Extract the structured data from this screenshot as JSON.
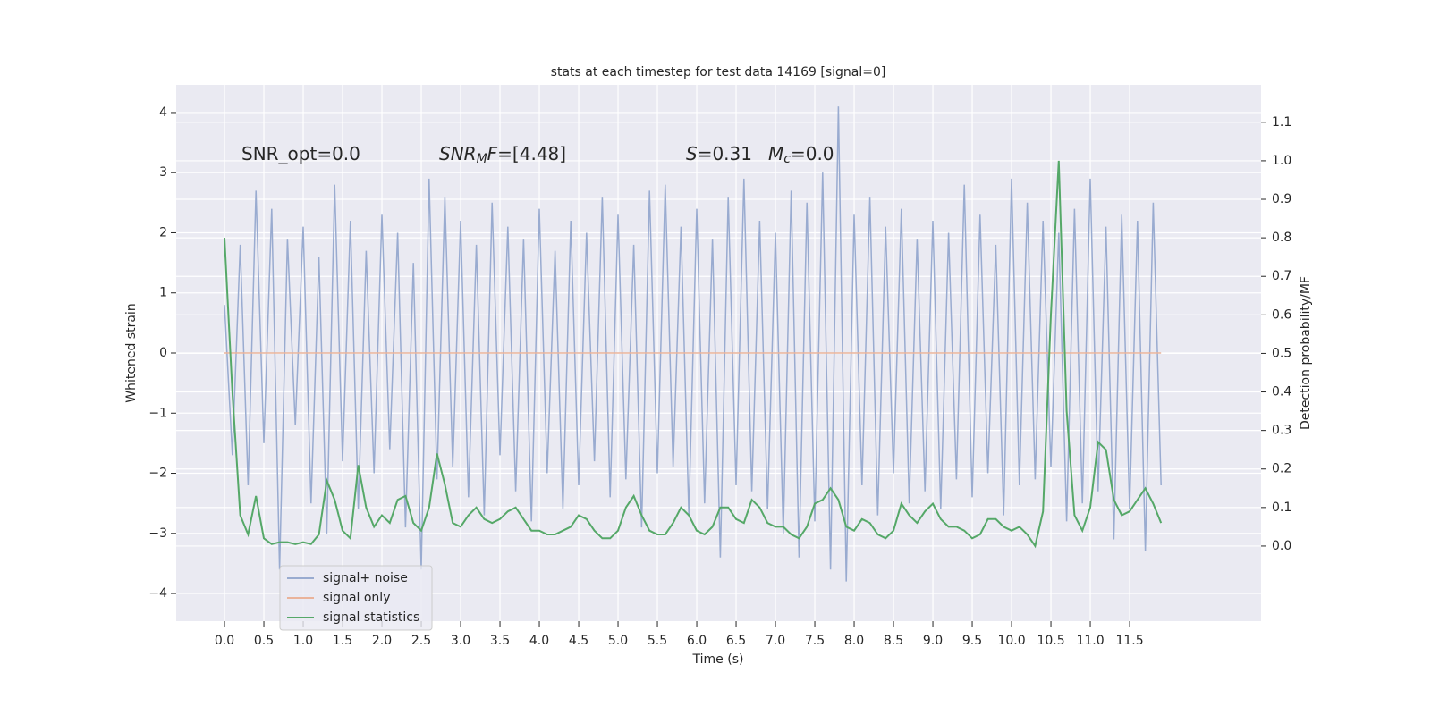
{
  "chart_data": {
    "type": "line",
    "title": "stats at each timestep for test data 14169 [signal=0]",
    "xlabel": "Time (s)",
    "ylabel": "Whitened strain",
    "y2label": "Detection probability/MF",
    "annotations": [
      {
        "parts": [
          "SNR_opt=0.0"
        ]
      },
      {
        "parts": [
          "SNR",
          "M",
          "F",
          "=[4.48]"
        ]
      },
      {
        "parts": [
          "S",
          "=0.31"
        ]
      },
      {
        "parts": [
          "M",
          "c",
          "=0.0"
        ]
      }
    ],
    "x": [
      0.0,
      0.1,
      0.2,
      0.3,
      0.4,
      0.5,
      0.6,
      0.7,
      0.8,
      0.9,
      1.0,
      1.1,
      1.2,
      1.3,
      1.4,
      1.5,
      1.6,
      1.7,
      1.8,
      1.9,
      2.0,
      2.1,
      2.2,
      2.3,
      2.4,
      2.5,
      2.6,
      2.7,
      2.8,
      2.9,
      3.0,
      3.1,
      3.2,
      3.3,
      3.4,
      3.5,
      3.6,
      3.7,
      3.8,
      3.9,
      4.0,
      4.1,
      4.2,
      4.3,
      4.4,
      4.5,
      4.6,
      4.7,
      4.8,
      4.9,
      5.0,
      5.1,
      5.2,
      5.3,
      5.4,
      5.5,
      5.6,
      5.7,
      5.8,
      5.9,
      6.0,
      6.1,
      6.2,
      6.3,
      6.4,
      6.5,
      6.6,
      6.7,
      6.8,
      6.9,
      7.0,
      7.1,
      7.2,
      7.3,
      7.4,
      7.5,
      7.6,
      7.7,
      7.8,
      7.9,
      8.0,
      8.1,
      8.2,
      8.3,
      8.4,
      8.5,
      8.6,
      8.7,
      8.8,
      8.9,
      9.0,
      9.1,
      9.2,
      9.3,
      9.4,
      9.5,
      9.6,
      9.7,
      9.8,
      9.9,
      10.0,
      10.1,
      10.2,
      10.3,
      10.4,
      10.5,
      10.6,
      10.7,
      10.8,
      10.9,
      11.0,
      11.1,
      11.2,
      11.3,
      11.4,
      11.5,
      11.6,
      11.7,
      11.8,
      11.9
    ],
    "series": [
      {
        "name": "signal+ noise",
        "color": "#99abd0",
        "values": [
          0.8,
          -1.7,
          1.8,
          -2.2,
          2.7,
          -1.5,
          2.4,
          -3.6,
          1.9,
          -1.2,
          2.1,
          -2.5,
          1.6,
          -3.0,
          2.8,
          -1.8,
          2.2,
          -2.6,
          1.7,
          -2.0,
          2.3,
          -1.6,
          2.0,
          -2.9,
          1.5,
          -3.6,
          2.9,
          -2.1,
          2.6,
          -1.9,
          2.2,
          -2.4,
          1.8,
          -2.7,
          2.5,
          -1.7,
          2.1,
          -2.3,
          1.9,
          -2.8,
          2.4,
          -2.0,
          1.7,
          -2.6,
          2.2,
          -2.2,
          2.0,
          -1.8,
          2.6,
          -2.4,
          2.3,
          -2.1,
          1.8,
          -2.9,
          2.7,
          -2.0,
          2.8,
          -1.9,
          2.1,
          -2.7,
          2.4,
          -2.5,
          1.9,
          -3.4,
          2.6,
          -2.2,
          2.9,
          -2.3,
          2.2,
          -2.6,
          2.0,
          -3.0,
          2.7,
          -3.4,
          2.5,
          -2.8,
          3.0,
          -3.6,
          4.1,
          -3.8,
          2.3,
          -2.2,
          2.6,
          -2.7,
          2.1,
          -2.0,
          2.4,
          -2.5,
          1.9,
          -2.3,
          2.2,
          -2.6,
          2.0,
          -2.1,
          2.8,
          -2.4,
          2.3,
          -2.0,
          1.8,
          -2.7,
          2.9,
          -2.2,
          2.5,
          -2.1,
          2.2,
          -1.9,
          2.0,
          -2.8,
          2.4,
          -2.5,
          2.9,
          -2.3,
          2.1,
          -3.1,
          2.3,
          -2.6,
          2.2,
          -3.3,
          2.5,
          -2.2
        ]
      },
      {
        "name": "signal only",
        "color": "#eab39a",
        "x": [
          0.0,
          11.9
        ],
        "values": [
          0,
          0
        ]
      },
      {
        "name": "signal statistics",
        "color": "#55a868",
        "axis": "y2",
        "values": [
          0.8,
          0.4,
          0.08,
          0.03,
          0.13,
          0.02,
          0.005,
          0.01,
          0.01,
          0.005,
          0.01,
          0.005,
          0.03,
          0.17,
          0.12,
          0.04,
          0.02,
          0.21,
          0.1,
          0.05,
          0.08,
          0.06,
          0.12,
          0.13,
          0.06,
          0.04,
          0.1,
          0.24,
          0.16,
          0.06,
          0.05,
          0.08,
          0.1,
          0.07,
          0.06,
          0.07,
          0.09,
          0.1,
          0.07,
          0.04,
          0.04,
          0.03,
          0.03,
          0.04,
          0.05,
          0.08,
          0.07,
          0.04,
          0.02,
          0.02,
          0.04,
          0.1,
          0.13,
          0.08,
          0.04,
          0.03,
          0.03,
          0.06,
          0.1,
          0.08,
          0.04,
          0.03,
          0.05,
          0.1,
          0.1,
          0.07,
          0.06,
          0.12,
          0.1,
          0.06,
          0.05,
          0.05,
          0.03,
          0.02,
          0.05,
          0.11,
          0.12,
          0.15,
          0.12,
          0.05,
          0.04,
          0.07,
          0.06,
          0.03,
          0.02,
          0.04,
          0.11,
          0.08,
          0.06,
          0.09,
          0.11,
          0.07,
          0.05,
          0.05,
          0.04,
          0.02,
          0.03,
          0.07,
          0.07,
          0.05,
          0.04,
          0.05,
          0.03,
          0.0,
          0.09,
          0.6,
          1.0,
          0.35,
          0.08,
          0.04,
          0.1,
          0.27,
          0.25,
          0.12,
          0.08,
          0.09,
          0.12,
          0.15,
          0.11,
          0.06
        ]
      }
    ],
    "xlim": [
      -0.614,
      13.17
    ],
    "xticks": [
      {
        "value": 0,
        "label": "0.0"
      },
      {
        "value": 0.5,
        "label": "0.5"
      },
      {
        "value": 1,
        "label": "1.0"
      },
      {
        "value": 1.5,
        "label": "1.5"
      },
      {
        "value": 2,
        "label": "2.0"
      },
      {
        "value": 2.5,
        "label": "2.5"
      },
      {
        "value": 3,
        "label": "3.0"
      },
      {
        "value": 3.5,
        "label": "3.5"
      },
      {
        "value": 4,
        "label": "4.0"
      },
      {
        "value": 4.5,
        "label": "4.5"
      },
      {
        "value": 5,
        "label": "5.0"
      },
      {
        "value": 5.5,
        "label": "5.5"
      },
      {
        "value": 6,
        "label": "6.0"
      },
      {
        "value": 6.5,
        "label": "6.5"
      },
      {
        "value": 7,
        "label": "7.0"
      },
      {
        "value": 7.5,
        "label": "7.5"
      },
      {
        "value": 8,
        "label": "8.0"
      },
      {
        "value": 8.5,
        "label": "8.5"
      },
      {
        "value": 9,
        "label": "9.0"
      },
      {
        "value": 9.5,
        "label": "9.5"
      },
      {
        "value": 10,
        "label": "10.0"
      },
      {
        "value": 10.5,
        "label": "10.5"
      },
      {
        "value": 11,
        "label": "11.0"
      },
      {
        "value": 11.5,
        "label": "11.5"
      }
    ],
    "ylim": [
      -4.46,
      4.46
    ],
    "yticks": [
      {
        "value": -4,
        "label": "−4"
      },
      {
        "value": -3,
        "label": "−3"
      },
      {
        "value": -2,
        "label": "−2"
      },
      {
        "value": -1,
        "label": "−1"
      },
      0,
      1,
      2,
      3,
      4
    ],
    "y2lim": [
      -0.195,
      1.197
    ],
    "y2ticks": [
      {
        "value": 0,
        "label": "0.0"
      },
      {
        "value": 0.1,
        "label": "0.1"
      },
      {
        "value": 0.2,
        "label": "0.2"
      },
      {
        "value": 0.3,
        "label": "0.3"
      },
      {
        "value": 0.4,
        "label": "0.4"
      },
      {
        "value": 0.5,
        "label": "0.5"
      },
      {
        "value": 0.6,
        "label": "0.6"
      },
      {
        "value": 0.7,
        "label": "0.7"
      },
      {
        "value": 0.8,
        "label": "0.8"
      },
      {
        "value": 0.9,
        "label": "0.9"
      },
      {
        "value": 1.0,
        "label": "1.0"
      },
      {
        "value": 1.1,
        "label": "1.1"
      }
    ],
    "grid": true,
    "legend": "lower left"
  }
}
